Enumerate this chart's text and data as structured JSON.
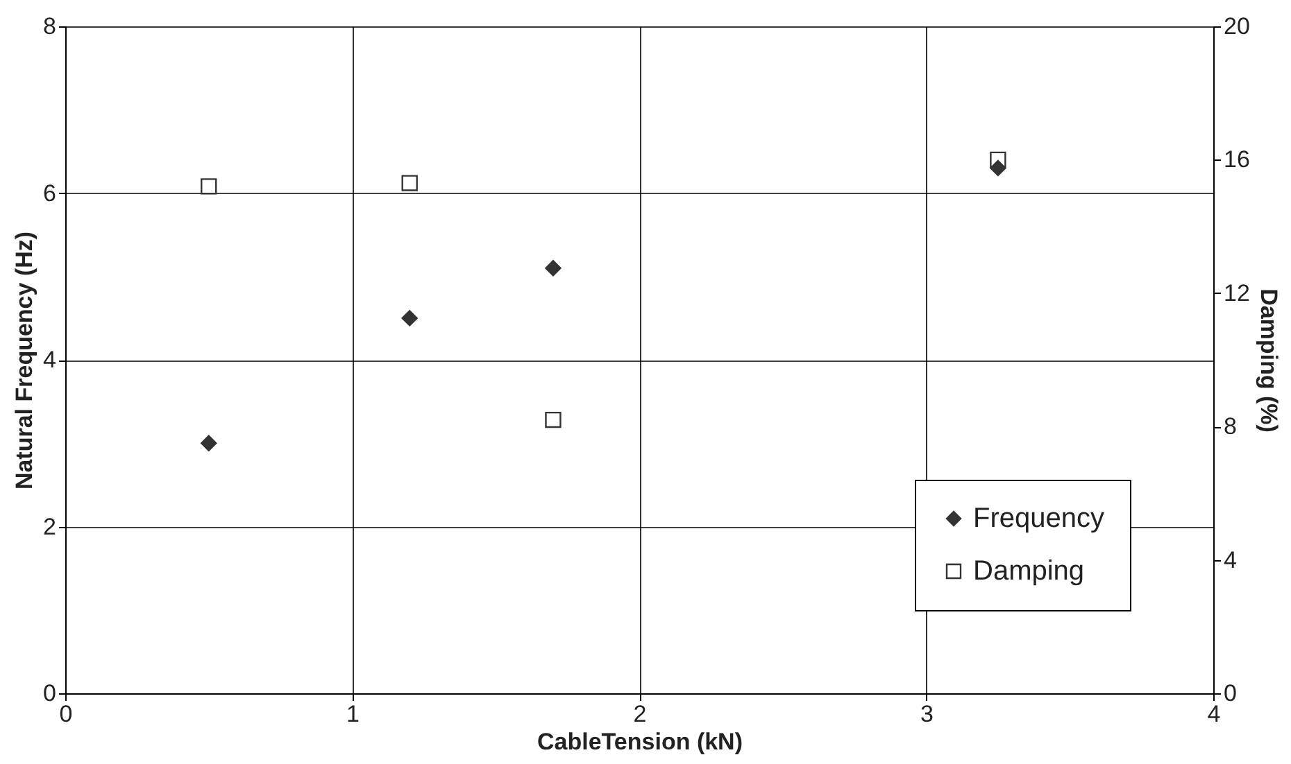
{
  "chart_data": {
    "type": "scatter",
    "xlabel": "CableTension (kN)",
    "ylabel": "Natural Frequency (Hz)",
    "y2label": "Damping (%)",
    "xlim": [
      0,
      4
    ],
    "xticks": [
      0,
      1,
      2,
      3,
      4
    ],
    "ylim": [
      0,
      8
    ],
    "yticks": [
      0,
      2,
      4,
      6,
      8
    ],
    "y2lim": [
      0,
      20
    ],
    "y2ticks": [
      0,
      4,
      8,
      12,
      16,
      20
    ],
    "grid": true,
    "legend": "bottom right",
    "series": [
      {
        "name": "Frequency",
        "color": "#333333",
        "marker": "diamond",
        "x": [
          0.5,
          1.2,
          1.7,
          3.25
        ],
        "values": [
          3.0,
          4.5,
          5.1,
          6.3
        ]
      },
      {
        "name": "Damping",
        "color": "#333333",
        "marker": "square",
        "axis": "y2",
        "x": [
          0.5,
          1.2,
          1.7,
          3.25
        ],
        "values": [
          15.2,
          15.3,
          8.2,
          16.0
        ]
      }
    ]
  }
}
